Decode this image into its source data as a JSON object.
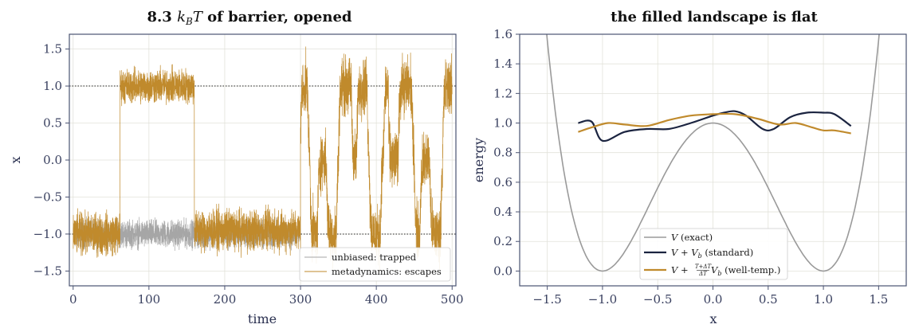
{
  "colors": {
    "gray_trace": "#a6a6a6",
    "gold": "#c08a2c",
    "navy": "#1b2440",
    "exact_gray": "#9a9a9a"
  },
  "chart_data": [
    {
      "type": "line",
      "title_prefix": "8.3",
      "title_math": "k",
      "title_sub": "B",
      "title_math2": "T",
      "title_suffix": " of barrier, opened",
      "xlabel": "time",
      "ylabel": "x",
      "xlim": [
        -5,
        505
      ],
      "ylim": [
        -1.7,
        1.7
      ],
      "xticks": [
        0,
        100,
        200,
        300,
        400,
        500
      ],
      "xtick_labels": [
        "0",
        "100",
        "200",
        "300",
        "400",
        "500"
      ],
      "yticks": [
        -1.5,
        -1.0,
        -0.5,
        0.0,
        0.5,
        1.0,
        1.5
      ],
      "ytick_labels": [
        "−1.5",
        "−1.0",
        "−0.5",
        "0.0",
        "0.5",
        "1.0",
        "1.5"
      ],
      "reference_lines": [
        1.0,
        -1.0
      ],
      "legend_position": "lower-right",
      "series": [
        {
          "name": "unbiased: trapped",
          "x_range": [
            0,
            300
          ],
          "segments": [
            {
              "x": [
                0,
                300
              ],
              "mean": -1.0,
              "noise": 0.28
            }
          ]
        },
        {
          "name": "metadynamics: escapes",
          "x_range": [
            0,
            500
          ],
          "segments": [
            {
              "x": [
                0,
                62
              ],
              "mean": -1.0,
              "noise": 0.42
            },
            {
              "x": [
                62,
                160
              ],
              "mean": 1.0,
              "noise": 0.35
            },
            {
              "x": [
                160,
                300
              ],
              "mean": -0.95,
              "noise": 0.42
            },
            {
              "x": [
                300,
                500
              ],
              "mean": 0.2,
              "noise": 1.2
            }
          ]
        }
      ]
    },
    {
      "type": "line",
      "title": "the filled landscape is flat",
      "xlabel": "x",
      "ylabel": "energy",
      "xlim": [
        -1.75,
        1.75
      ],
      "ylim": [
        -0.1,
        1.6
      ],
      "xticks": [
        -1.5,
        -1.0,
        -0.5,
        0.0,
        0.5,
        1.0,
        1.5
      ],
      "xtick_labels": [
        "−1.5",
        "−1.0",
        "−0.5",
        "0.0",
        "0.5",
        "1.0",
        "1.5"
      ],
      "yticks": [
        0.0,
        0.2,
        0.4,
        0.6,
        0.8,
        1.0,
        1.2,
        1.4,
        1.6
      ],
      "ytick_labels": [
        "0.0",
        "0.2",
        "0.4",
        "0.6",
        "0.8",
        "1.0",
        "1.2",
        "1.4",
        "1.6"
      ],
      "legend_position": "lower-center",
      "series": [
        {
          "name_math": "V",
          "name_text": " (exact)",
          "function": "(x^2 - 1)^2",
          "x_range": [
            -1.75,
            1.75
          ]
        },
        {
          "name_math": "V + V",
          "name_sub": "b",
          "name_text": " (standard)",
          "x": [
            -1.22,
            -1.1,
            -1.0,
            -0.8,
            -0.6,
            -0.4,
            -0.2,
            0.0,
            0.1,
            0.2,
            0.3,
            0.45,
            0.55,
            0.7,
            0.85,
            1.0,
            1.1,
            1.25
          ],
          "y": [
            1.0,
            1.01,
            0.88,
            0.94,
            0.96,
            0.96,
            1.0,
            1.05,
            1.07,
            1.08,
            1.05,
            0.96,
            0.96,
            1.04,
            1.07,
            1.07,
            1.06,
            0.98
          ]
        },
        {
          "name_math": "V + ",
          "name_frac_num": "T+ΔT",
          "name_frac_den": "ΔT",
          "name_math_after": "V",
          "name_sub": "b",
          "name_text": " (well-temp.)",
          "x": [
            -1.22,
            -1.1,
            -0.95,
            -0.8,
            -0.6,
            -0.4,
            -0.2,
            0.0,
            0.2,
            0.4,
            0.6,
            0.75,
            0.9,
            1.0,
            1.1,
            1.25
          ],
          "y": [
            0.94,
            0.97,
            1.0,
            0.99,
            0.98,
            1.02,
            1.05,
            1.06,
            1.06,
            1.03,
            0.99,
            1.0,
            0.97,
            0.95,
            0.95,
            0.93
          ]
        }
      ]
    }
  ]
}
